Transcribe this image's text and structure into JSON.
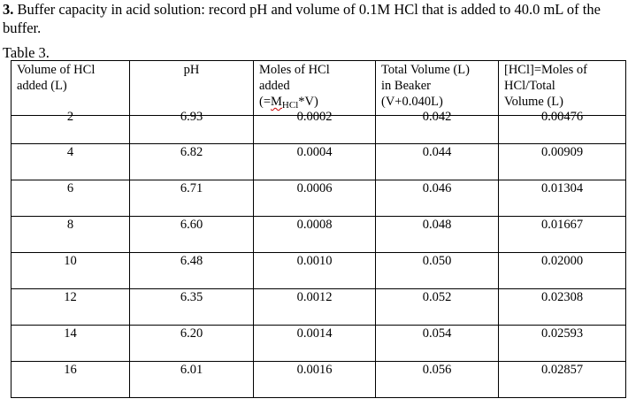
{
  "heading": {
    "number": "3.",
    "text": " Buffer capacity in acid solution: record pH and volume of 0.1M HCl that is added to 40.0 mL of the buffer."
  },
  "caption": "Table 3.",
  "table": {
    "headers": [
      {
        "line1": "Volume of HCl",
        "line2": "added (L)",
        "line3": ""
      },
      {
        "line1": "pH",
        "line2": "",
        "line3": ""
      },
      {
        "line1": "Moles of HCl",
        "line2": "added",
        "line3_pre": "(=",
        "line3_m": "M",
        "line3_sub": "HCl",
        "line3_post": "*V)"
      },
      {
        "line1": "Total Volume (L)",
        "line2": "in Beaker",
        "line3": "(V+0.040L)"
      },
      {
        "line1": "[HCl]=Moles of",
        "line2": "HCl/Total",
        "line3": "Volume (L)"
      }
    ],
    "rows": [
      [
        "2",
        "6.93",
        "0.0002",
        "0.042",
        "0.00476"
      ],
      [
        "4",
        "6.82",
        "0.0004",
        "0.044",
        "0.00909"
      ],
      [
        "6",
        "6.71",
        "0.0006",
        "0.046",
        "0.01304"
      ],
      [
        "8",
        "6.60",
        "0.0008",
        "0.048",
        "0.01667"
      ],
      [
        "10",
        "6.48",
        "0.0010",
        "0.050",
        "0.02000"
      ],
      [
        "12",
        "6.35",
        "0.0012",
        "0.052",
        "0.02308"
      ],
      [
        "14",
        "6.20",
        "0.0014",
        "0.054",
        "0.02593"
      ],
      [
        "16",
        "6.01",
        "0.0016",
        "0.056",
        "0.02857"
      ]
    ]
  }
}
